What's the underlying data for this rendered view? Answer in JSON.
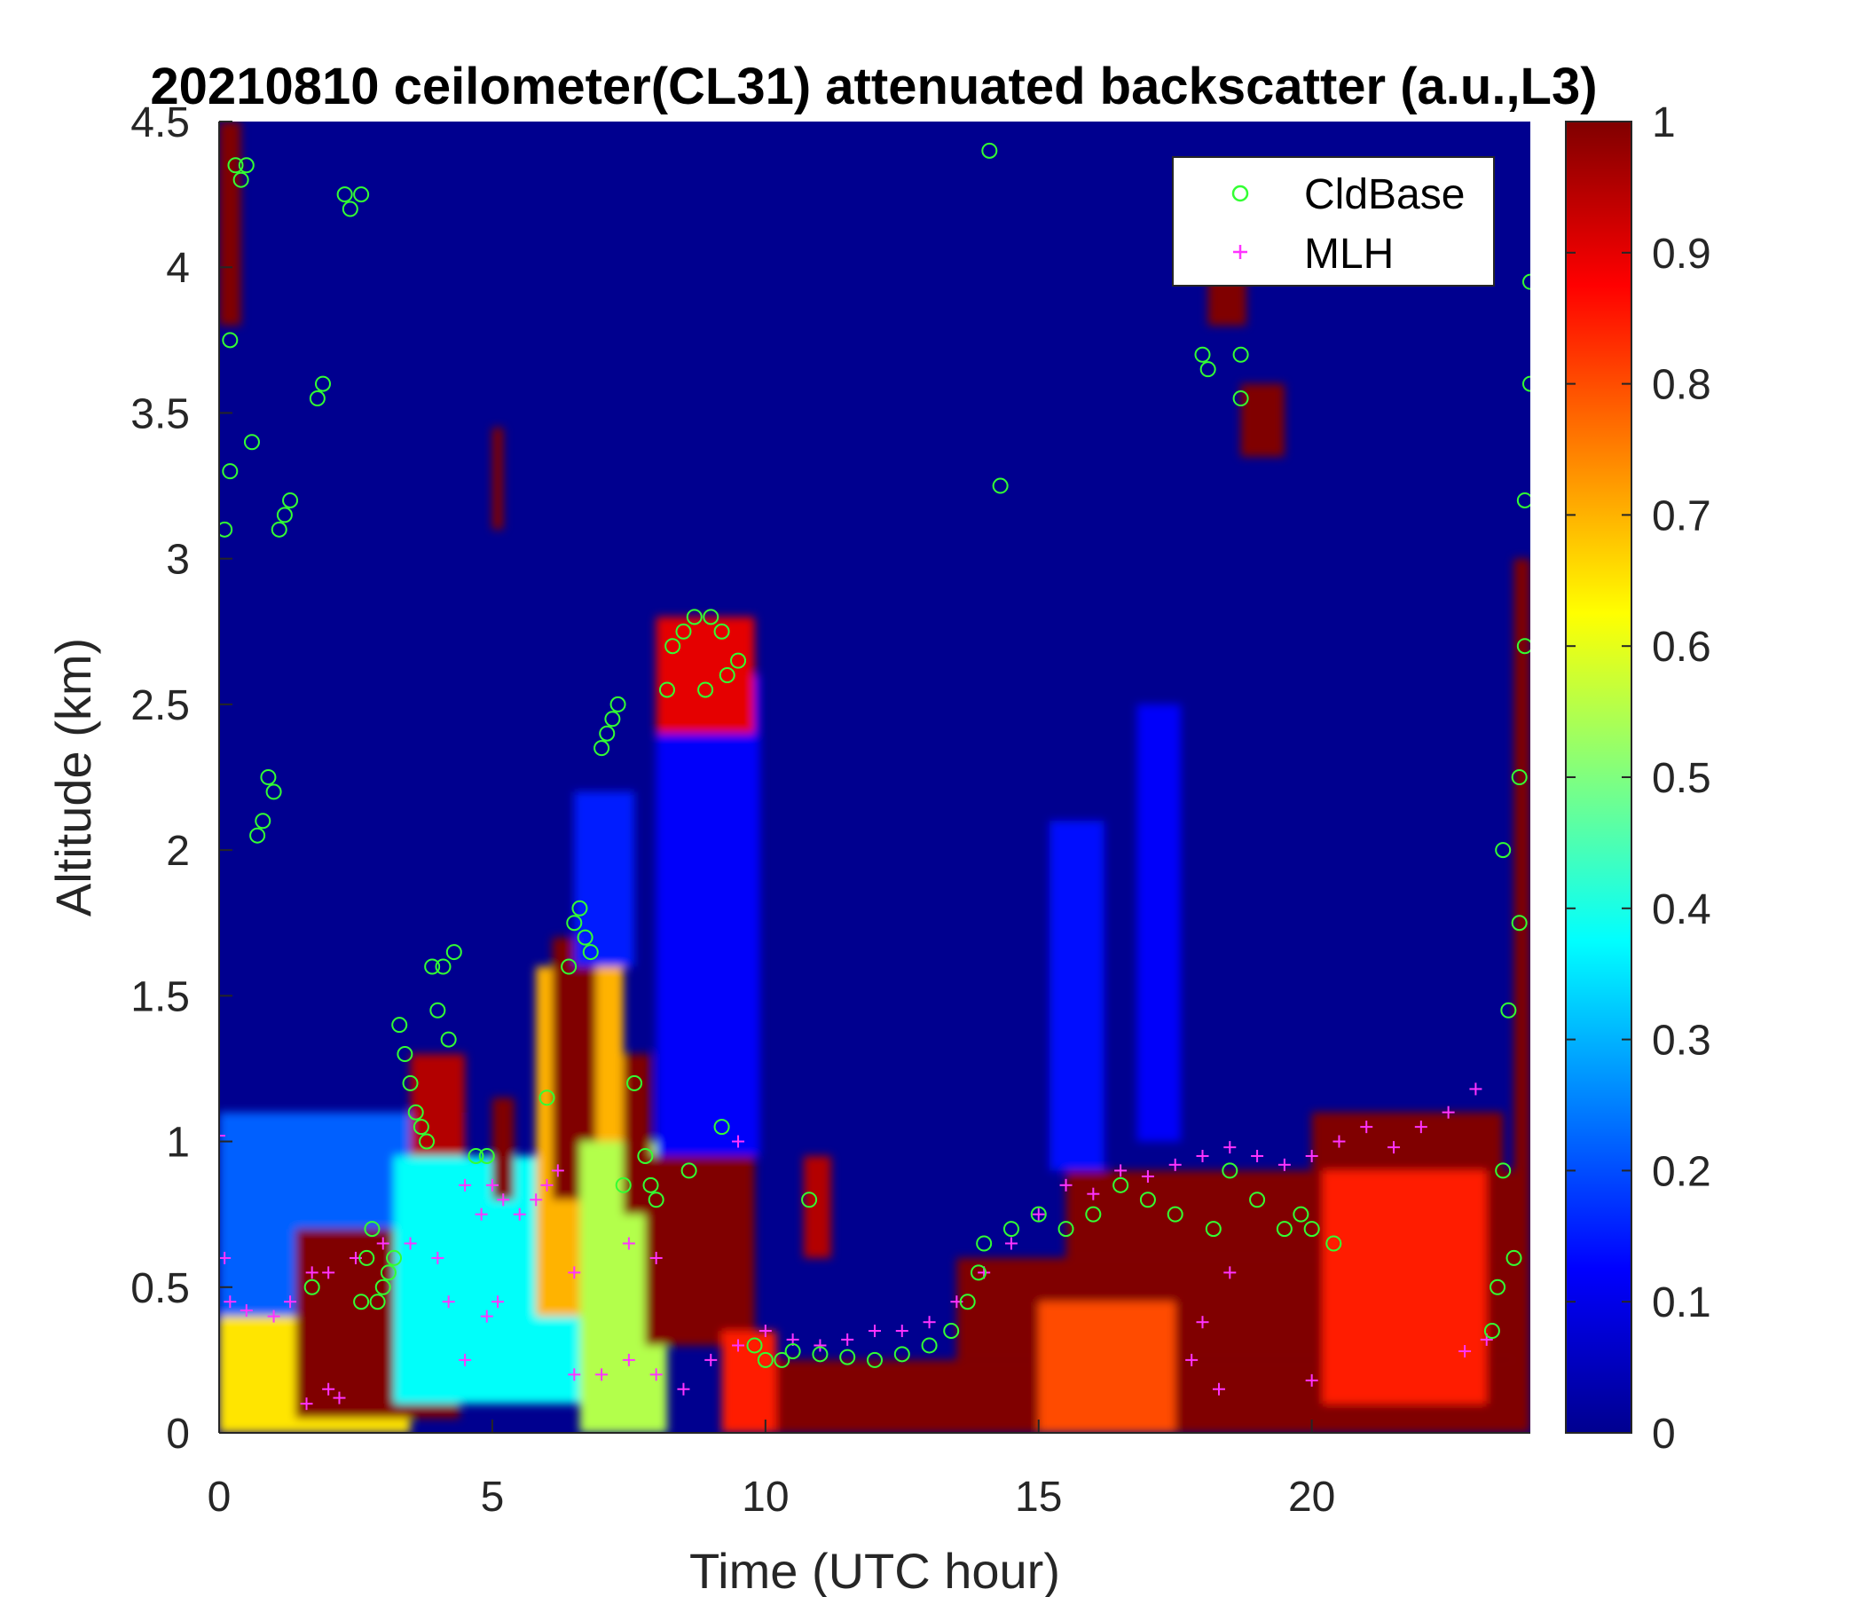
{
  "chart_data": {
    "type": "heatmap",
    "title": "20210810 ceilometer(CL31) attenuated backscatter (a.u.,L3)",
    "xlabel": "Time (UTC hour)",
    "ylabel": "Altitude (km)",
    "xlim": [
      0,
      24
    ],
    "ylim": [
      0,
      4.5
    ],
    "xticks": [
      0,
      5,
      10,
      15,
      20
    ],
    "yticks": [
      0,
      0.5,
      1,
      1.5,
      2,
      2.5,
      3,
      3.5,
      4,
      4.5
    ],
    "yticklabels": [
      "0",
      "0.5",
      "1",
      "1.5",
      "2",
      "2.5",
      "3",
      "3.5",
      "4",
      "4.5"
    ],
    "colorbar": {
      "limits": [
        0,
        1
      ],
      "ticks": [
        0,
        0.1,
        0.2,
        0.3,
        0.4,
        0.5,
        0.6,
        0.7,
        0.8,
        0.9,
        1
      ],
      "colormap": "jet"
    },
    "colors": {
      "cldbase": "#33ff33",
      "mlh": "#ff33ff",
      "background": "#00008f"
    },
    "legend": {
      "location": "top-right",
      "entries": [
        {
          "label": "CldBase",
          "marker": "circle",
          "color": "#33ff33"
        },
        {
          "label": "MLH",
          "marker": "plus",
          "color": "#ff33ff"
        }
      ]
    },
    "regions": [
      {
        "t0": 0.0,
        "t1": 3.5,
        "z0": 0.0,
        "z1": 0.4,
        "v": 0.65
      },
      {
        "t0": 0.0,
        "t1": 4.5,
        "z0": 0.4,
        "z1": 1.1,
        "v": 0.22
      },
      {
        "t0": 1.4,
        "t1": 4.4,
        "z0": 0.05,
        "z1": 0.7,
        "v": 1.0
      },
      {
        "t0": 3.2,
        "t1": 6.8,
        "z0": 0.1,
        "z1": 0.95,
        "v": 0.38
      },
      {
        "t0": 3.5,
        "t1": 4.5,
        "z0": 0.95,
        "z1": 1.3,
        "v": 0.95
      },
      {
        "t0": 5.0,
        "t1": 5.4,
        "z0": 0.8,
        "z1": 1.15,
        "v": 1.0
      },
      {
        "t0": 5.8,
        "t1": 7.4,
        "z0": 0.4,
        "z1": 1.6,
        "v": 0.7
      },
      {
        "t0": 6.1,
        "t1": 6.9,
        "z0": 0.8,
        "z1": 1.7,
        "v": 1.0
      },
      {
        "t0": 6.6,
        "t1": 8.2,
        "z0": 0.0,
        "z1": 1.0,
        "v": 0.55
      },
      {
        "t0": 7.4,
        "t1": 7.9,
        "z0": 0.75,
        "z1": 1.3,
        "v": 1.0
      },
      {
        "t0": 7.8,
        "t1": 9.8,
        "z0": 0.3,
        "z1": 0.95,
        "v": 1.0
      },
      {
        "t0": 8.8,
        "t1": 9.6,
        "z0": 0.8,
        "z1": 1.2,
        "v": 1.0
      },
      {
        "t0": 9.2,
        "t1": 10.2,
        "z0": 0.0,
        "z1": 0.35,
        "v": 0.85
      },
      {
        "t0": 8.0,
        "t1": 9.9,
        "z0": 0.95,
        "z1": 2.6,
        "v": 0.12
      },
      {
        "t0": 6.5,
        "t1": 7.6,
        "z0": 1.6,
        "z1": 2.2,
        "v": 0.15
      },
      {
        "t0": 10.2,
        "t1": 24.0,
        "z0": 0.0,
        "z1": 0.25,
        "v": 1.0
      },
      {
        "t0": 13.5,
        "t1": 24.0,
        "z0": 0.25,
        "z1": 0.6,
        "v": 1.0
      },
      {
        "t0": 15.5,
        "t1": 24.0,
        "z0": 0.6,
        "z1": 0.9,
        "v": 1.0
      },
      {
        "t0": 20.0,
        "t1": 23.5,
        "z0": 0.9,
        "z1": 1.1,
        "v": 1.0
      },
      {
        "t0": 15.0,
        "t1": 17.5,
        "z0": 0.0,
        "z1": 0.45,
        "v": 0.8
      },
      {
        "t0": 20.2,
        "t1": 23.2,
        "z0": 0.1,
        "z1": 0.9,
        "v": 0.85
      },
      {
        "t0": 15.2,
        "t1": 16.2,
        "z0": 0.9,
        "z1": 2.1,
        "v": 0.14
      },
      {
        "t0": 16.8,
        "t1": 17.6,
        "z0": 1.0,
        "z1": 2.5,
        "v": 0.12
      },
      {
        "t0": 10.7,
        "t1": 11.2,
        "z0": 0.6,
        "z1": 0.95,
        "v": 0.95
      },
      {
        "t0": 5.0,
        "t1": 5.2,
        "z0": 3.1,
        "z1": 3.45,
        "v": 1.0
      },
      {
        "t0": 18.1,
        "t1": 18.8,
        "z0": 3.8,
        "z1": 4.0,
        "v": 1.0
      },
      {
        "t0": 18.7,
        "t1": 19.5,
        "z0": 3.35,
        "z1": 3.6,
        "v": 1.0
      },
      {
        "t0": 23.7,
        "t1": 24.0,
        "z0": 0.0,
        "z1": 3.0,
        "v": 1.0
      },
      {
        "t0": 0.0,
        "t1": 0.4,
        "z0": 3.8,
        "z1": 4.5,
        "v": 1.0
      },
      {
        "t0": 8.0,
        "t1": 9.8,
        "z0": 2.4,
        "z1": 2.8,
        "v": 0.9
      }
    ],
    "cldbase": [
      {
        "x": 0.1,
        "y": 3.1
      },
      {
        "x": 0.2,
        "y": 3.3
      },
      {
        "x": 0.2,
        "y": 3.75
      },
      {
        "x": 0.3,
        "y": 4.35
      },
      {
        "x": 0.4,
        "y": 4.3
      },
      {
        "x": 0.5,
        "y": 4.35
      },
      {
        "x": 0.6,
        "y": 3.4
      },
      {
        "x": 0.7,
        "y": 2.05
      },
      {
        "x": 0.8,
        "y": 2.1
      },
      {
        "x": 0.9,
        "y": 2.25
      },
      {
        "x": 1.0,
        "y": 2.2
      },
      {
        "x": 1.1,
        "y": 3.1
      },
      {
        "x": 1.2,
        "y": 3.15
      },
      {
        "x": 1.3,
        "y": 3.2
      },
      {
        "x": 1.7,
        "y": 0.5
      },
      {
        "x": 1.8,
        "y": 3.55
      },
      {
        "x": 1.9,
        "y": 3.6
      },
      {
        "x": 2.3,
        "y": 4.25
      },
      {
        "x": 2.4,
        "y": 4.2
      },
      {
        "x": 2.6,
        "y": 4.25
      },
      {
        "x": 2.6,
        "y": 0.45
      },
      {
        "x": 2.7,
        "y": 0.6
      },
      {
        "x": 2.8,
        "y": 0.7
      },
      {
        "x": 2.9,
        "y": 0.45
      },
      {
        "x": 3.0,
        "y": 0.5
      },
      {
        "x": 3.1,
        "y": 0.55
      },
      {
        "x": 3.2,
        "y": 0.6
      },
      {
        "x": 3.3,
        "y": 1.4
      },
      {
        "x": 3.4,
        "y": 1.3
      },
      {
        "x": 3.5,
        "y": 1.2
      },
      {
        "x": 3.6,
        "y": 1.1
      },
      {
        "x": 3.7,
        "y": 1.05
      },
      {
        "x": 3.8,
        "y": 1.0
      },
      {
        "x": 3.9,
        "y": 1.6
      },
      {
        "x": 4.0,
        "y": 1.45
      },
      {
        "x": 4.1,
        "y": 1.6
      },
      {
        "x": 4.2,
        "y": 1.35
      },
      {
        "x": 4.3,
        "y": 1.65
      },
      {
        "x": 4.7,
        "y": 0.95
      },
      {
        "x": 4.9,
        "y": 0.95
      },
      {
        "x": 6.0,
        "y": 1.15
      },
      {
        "x": 6.4,
        "y": 1.6
      },
      {
        "x": 6.5,
        "y": 1.75
      },
      {
        "x": 6.6,
        "y": 1.8
      },
      {
        "x": 6.7,
        "y": 1.7
      },
      {
        "x": 6.8,
        "y": 1.65
      },
      {
        "x": 7.0,
        "y": 2.35
      },
      {
        "x": 7.1,
        "y": 2.4
      },
      {
        "x": 7.2,
        "y": 2.45
      },
      {
        "x": 7.3,
        "y": 2.5
      },
      {
        "x": 7.4,
        "y": 0.85
      },
      {
        "x": 7.6,
        "y": 1.2
      },
      {
        "x": 7.8,
        "y": 0.95
      },
      {
        "x": 7.9,
        "y": 0.85
      },
      {
        "x": 8.0,
        "y": 0.8
      },
      {
        "x": 8.2,
        "y": 2.55
      },
      {
        "x": 8.3,
        "y": 2.7
      },
      {
        "x": 8.5,
        "y": 2.75
      },
      {
        "x": 8.6,
        "y": 0.9
      },
      {
        "x": 8.7,
        "y": 2.8
      },
      {
        "x": 8.9,
        "y": 2.55
      },
      {
        "x": 9.0,
        "y": 2.8
      },
      {
        "x": 9.2,
        "y": 2.75
      },
      {
        "x": 9.2,
        "y": 1.05
      },
      {
        "x": 9.3,
        "y": 2.6
      },
      {
        "x": 9.5,
        "y": 2.65
      },
      {
        "x": 9.8,
        "y": 0.3
      },
      {
        "x": 10.0,
        "y": 0.25
      },
      {
        "x": 10.3,
        "y": 0.25
      },
      {
        "x": 10.5,
        "y": 0.28
      },
      {
        "x": 10.8,
        "y": 0.8
      },
      {
        "x": 11.0,
        "y": 0.27
      },
      {
        "x": 11.5,
        "y": 0.26
      },
      {
        "x": 12.0,
        "y": 0.25
      },
      {
        "x": 12.5,
        "y": 0.27
      },
      {
        "x": 13.0,
        "y": 0.3
      },
      {
        "x": 13.4,
        "y": 0.35
      },
      {
        "x": 13.7,
        "y": 0.45
      },
      {
        "x": 13.9,
        "y": 0.55
      },
      {
        "x": 14.0,
        "y": 0.65
      },
      {
        "x": 14.1,
        "y": 4.4
      },
      {
        "x": 14.3,
        "y": 3.25
      },
      {
        "x": 14.5,
        "y": 0.7
      },
      {
        "x": 15.0,
        "y": 0.75
      },
      {
        "x": 15.5,
        "y": 0.7
      },
      {
        "x": 16.0,
        "y": 0.75
      },
      {
        "x": 16.5,
        "y": 0.85
      },
      {
        "x": 17.0,
        "y": 0.8
      },
      {
        "x": 17.5,
        "y": 0.75
      },
      {
        "x": 17.7,
        "y": 4.35
      },
      {
        "x": 18.0,
        "y": 3.7
      },
      {
        "x": 18.1,
        "y": 3.65
      },
      {
        "x": 18.2,
        "y": 0.7
      },
      {
        "x": 18.5,
        "y": 0.9
      },
      {
        "x": 18.7,
        "y": 3.7
      },
      {
        "x": 18.7,
        "y": 3.55
      },
      {
        "x": 19.0,
        "y": 0.8
      },
      {
        "x": 19.5,
        "y": 0.7
      },
      {
        "x": 19.8,
        "y": 0.75
      },
      {
        "x": 20.0,
        "y": 0.7
      },
      {
        "x": 20.4,
        "y": 0.65
      },
      {
        "x": 23.3,
        "y": 0.35
      },
      {
        "x": 23.4,
        "y": 0.5
      },
      {
        "x": 23.5,
        "y": 0.9
      },
      {
        "x": 23.5,
        "y": 2.0
      },
      {
        "x": 23.6,
        "y": 1.45
      },
      {
        "x": 23.7,
        "y": 0.6
      },
      {
        "x": 23.8,
        "y": 2.25
      },
      {
        "x": 23.8,
        "y": 1.75
      },
      {
        "x": 23.9,
        "y": 2.7
      },
      {
        "x": 23.9,
        "y": 3.2
      },
      {
        "x": 24.0,
        "y": 3.6
      },
      {
        "x": 24.0,
        "y": 3.95
      }
    ],
    "mlh": [
      {
        "x": 0.0,
        "y": 1.02
      },
      {
        "x": 0.1,
        "y": 0.6
      },
      {
        "x": 0.2,
        "y": 0.45
      },
      {
        "x": 0.5,
        "y": 0.42
      },
      {
        "x": 1.0,
        "y": 0.4
      },
      {
        "x": 1.3,
        "y": 0.45
      },
      {
        "x": 1.7,
        "y": 0.55
      },
      {
        "x": 2.0,
        "y": 0.55
      },
      {
        "x": 1.6,
        "y": 0.1
      },
      {
        "x": 2.0,
        "y": 0.15
      },
      {
        "x": 2.2,
        "y": 0.12
      },
      {
        "x": 2.5,
        "y": 0.6
      },
      {
        "x": 3.0,
        "y": 0.65
      },
      {
        "x": 3.5,
        "y": 0.65
      },
      {
        "x": 4.0,
        "y": 0.6
      },
      {
        "x": 4.2,
        "y": 0.45
      },
      {
        "x": 4.5,
        "y": 0.85
      },
      {
        "x": 4.8,
        "y": 0.75
      },
      {
        "x": 5.0,
        "y": 0.85
      },
      {
        "x": 5.2,
        "y": 0.8
      },
      {
        "x": 5.5,
        "y": 0.75
      },
      {
        "x": 5.8,
        "y": 0.8
      },
      {
        "x": 6.0,
        "y": 0.85
      },
      {
        "x": 6.2,
        "y": 0.9
      },
      {
        "x": 4.9,
        "y": 0.4
      },
      {
        "x": 5.1,
        "y": 0.45
      },
      {
        "x": 4.5,
        "y": 0.25
      },
      {
        "x": 6.5,
        "y": 0.2
      },
      {
        "x": 7.0,
        "y": 0.2
      },
      {
        "x": 7.5,
        "y": 0.25
      },
      {
        "x": 8.0,
        "y": 0.2
      },
      {
        "x": 8.5,
        "y": 0.15
      },
      {
        "x": 9.0,
        "y": 0.25
      },
      {
        "x": 9.5,
        "y": 0.3
      },
      {
        "x": 10.0,
        "y": 0.35
      },
      {
        "x": 10.5,
        "y": 0.32
      },
      {
        "x": 11.0,
        "y": 0.3
      },
      {
        "x": 11.5,
        "y": 0.32
      },
      {
        "x": 12.0,
        "y": 0.35
      },
      {
        "x": 12.5,
        "y": 0.35
      },
      {
        "x": 13.0,
        "y": 0.38
      },
      {
        "x": 13.5,
        "y": 0.45
      },
      {
        "x": 14.0,
        "y": 0.55
      },
      {
        "x": 14.5,
        "y": 0.65
      },
      {
        "x": 15.0,
        "y": 0.75
      },
      {
        "x": 15.5,
        "y": 0.85
      },
      {
        "x": 16.0,
        "y": 0.82
      },
      {
        "x": 16.5,
        "y": 0.9
      },
      {
        "x": 17.0,
        "y": 0.88
      },
      {
        "x": 17.5,
        "y": 0.92
      },
      {
        "x": 18.0,
        "y": 0.95
      },
      {
        "x": 18.5,
        "y": 0.98
      },
      {
        "x": 19.0,
        "y": 0.95
      },
      {
        "x": 19.5,
        "y": 0.92
      },
      {
        "x": 20.0,
        "y": 0.95
      },
      {
        "x": 20.5,
        "y": 1.0
      },
      {
        "x": 21.0,
        "y": 1.05
      },
      {
        "x": 21.5,
        "y": 0.98
      },
      {
        "x": 22.0,
        "y": 1.05
      },
      {
        "x": 22.5,
        "y": 1.1
      },
      {
        "x": 23.0,
        "y": 1.18
      },
      {
        "x": 22.8,
        "y": 0.28
      },
      {
        "x": 23.2,
        "y": 0.32
      },
      {
        "x": 18.0,
        "y": 0.38
      },
      {
        "x": 17.8,
        "y": 0.25
      },
      {
        "x": 18.3,
        "y": 0.15
      },
      {
        "x": 20.0,
        "y": 0.18
      },
      {
        "x": 18.5,
        "y": 0.55
      },
      {
        "x": 7.5,
        "y": 0.65
      },
      {
        "x": 8.0,
        "y": 0.6
      },
      {
        "x": 6.5,
        "y": 0.55
      },
      {
        "x": 9.5,
        "y": 1.0
      }
    ]
  }
}
